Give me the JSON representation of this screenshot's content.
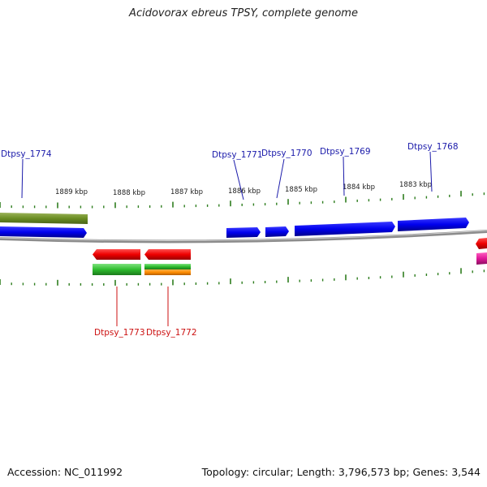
{
  "title": "Acidovorax ebreus TPSY, complete genome",
  "footer": {
    "accession": "Accession: NC_011992",
    "summary": "Topology: circular; Length: 3,796,573 bp; Genes: 3,544"
  },
  "colors": {
    "forward_gene": "#0000ee",
    "reverse_gene": "#ee0000",
    "forward_label": "#1a1aaa",
    "reverse_label": "#cc1111",
    "tick": "#2e7d1e",
    "backbone": "#8c8c8c",
    "green_feature": "#2ebd2e",
    "olive_feature": "#6b8e23",
    "orange_feature": "#ff8c00",
    "magenta_feature": "#e0189a"
  },
  "scale_labels": [
    "1889 kbp",
    "1888 kbp",
    "1887 kbp",
    "1886 kbp",
    "1885 kbp",
    "1884 kbp",
    "1883 kbp"
  ],
  "forward_gene_labels": [
    "Dtpsy_1774",
    "Dtpsy_1771",
    "Dtpsy_1770",
    "Dtpsy_1769",
    "Dtpsy_1768"
  ],
  "reverse_gene_labels": [
    "Dtpsy_1773",
    "Dtpsy_1772"
  ]
}
